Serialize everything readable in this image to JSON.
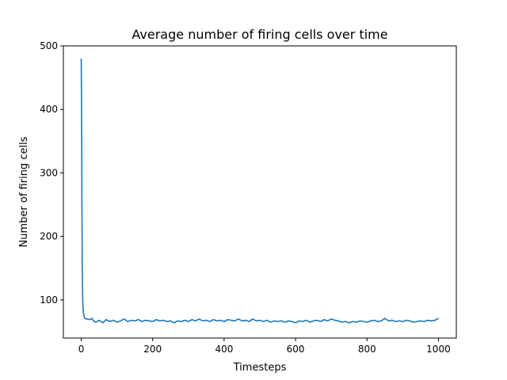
{
  "chart_data": {
    "type": "line",
    "title": "Average number of firing cells over time",
    "xlabel": "Timesteps",
    "ylabel": "Number of firing cells",
    "xlim": [
      -50,
      1050
    ],
    "ylim": [
      40,
      500
    ],
    "xticks": [
      0,
      200,
      400,
      600,
      800,
      1000
    ],
    "yticks": [
      100,
      200,
      300,
      400,
      500
    ],
    "grid": false,
    "line_color": "#1f77b4",
    "series": [
      {
        "x": [
          0,
          1,
          2,
          3,
          4,
          5,
          6,
          8,
          10,
          14,
          18,
          24,
          30,
          36,
          42,
          50,
          60,
          70,
          80,
          90,
          100,
          110,
          120,
          130,
          140,
          150,
          160,
          170,
          180,
          190,
          200,
          210,
          220,
          230,
          240,
          250,
          260,
          270,
          280,
          290,
          300,
          310,
          320,
          330,
          340,
          350,
          360,
          370,
          380,
          390,
          400,
          410,
          420,
          430,
          440,
          450,
          460,
          470,
          480,
          490,
          500,
          510,
          520,
          530,
          540,
          550,
          560,
          570,
          580,
          590,
          600,
          610,
          620,
          630,
          640,
          650,
          660,
          670,
          680,
          690,
          700,
          710,
          720,
          730,
          740,
          750,
          760,
          770,
          780,
          790,
          800,
          810,
          820,
          830,
          840,
          850,
          860,
          870,
          880,
          890,
          900,
          910,
          920,
          930,
          940,
          950,
          960,
          970,
          980,
          990,
          1000
        ],
        "values": [
          480,
          400,
          240,
          150,
          105,
          88,
          80,
          74,
          71,
          70,
          70,
          69,
          71,
          66,
          65,
          68,
          64,
          69,
          66,
          68,
          65,
          67,
          70,
          66,
          68,
          67,
          69,
          66,
          68,
          67,
          66,
          69,
          67,
          68,
          66,
          67,
          64,
          67,
          66,
          68,
          66,
          69,
          67,
          70,
          67,
          68,
          66,
          69,
          67,
          68,
          66,
          69,
          68,
          67,
          70,
          67,
          68,
          66,
          70,
          67,
          68,
          66,
          68,
          65,
          67,
          66,
          67,
          65,
          67,
          66,
          64,
          67,
          66,
          68,
          65,
          67,
          68,
          66,
          69,
          67,
          70,
          68,
          67,
          65,
          66,
          64,
          66,
          65,
          67,
          66,
          65,
          67,
          68,
          66,
          67,
          71,
          67,
          68,
          66,
          67,
          66,
          68,
          67,
          65,
          66,
          67,
          66,
          68,
          67,
          68,
          71
        ]
      }
    ]
  }
}
